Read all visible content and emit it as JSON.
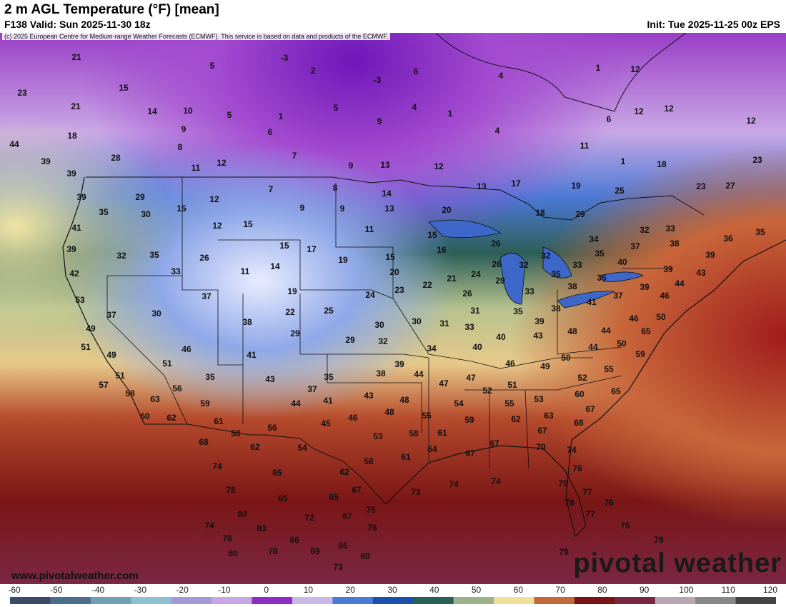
{
  "header": {
    "title": "2 m AGL Temperature (°F) [mean]",
    "valid": "F138 Valid: Sun 2025-11-30 18z",
    "init": "Init: Tue 2025-11-25 00z EPS"
  },
  "copyright": "(c) 2025 European Centre for Medium-range Weather Forecasts (ECMWF). This service is based on data and products of the ECMWF.",
  "website": "www.pivotalweather.com",
  "brand": "pivotal weather",
  "colorbar": {
    "ticks": [
      "-60",
      "-50",
      "-40",
      "-30",
      "-20",
      "-10",
      "0",
      "10",
      "20",
      "30",
      "40",
      "50",
      "60",
      "70",
      "80",
      "90",
      "100",
      "110",
      "120"
    ],
    "colors": [
      "#3a4a6a",
      "#4a6d8c",
      "#6fa0b4",
      "#8fc0d0",
      "#a29ad6",
      "#c8a6e4",
      "#8a2fc2",
      "#c9b8e6",
      "#4b7bd6",
      "#1b4fae",
      "#2c5f57",
      "#9bb28b",
      "#efe09a",
      "#c1693a",
      "#7a1414",
      "#7a2540",
      "#b8a6b0",
      "#888888",
      "#444444"
    ]
  },
  "temps": [
    [
      "21",
      107,
      81
    ],
    [
      "23",
      31,
      131
    ],
    [
      "21",
      106,
      150
    ],
    [
      "18",
      101,
      191
    ],
    [
      "44",
      20,
      203
    ],
    [
      "39",
      64,
      227
    ],
    [
      "28",
      162,
      222
    ],
    [
      "15",
      173,
      124
    ],
    [
      "14",
      213,
      157
    ],
    [
      "10",
      263,
      156
    ],
    [
      "9",
      257,
      182
    ],
    [
      "8",
      252,
      207
    ],
    [
      "11",
      274,
      236
    ],
    [
      "12",
      310,
      229
    ],
    [
      "5",
      297,
      93
    ],
    [
      "5",
      321,
      162
    ],
    [
      "1",
      393,
      164
    ],
    [
      "6",
      378,
      186
    ],
    [
      "7",
      412,
      219
    ],
    [
      "9",
      491,
      233
    ],
    [
      "13",
      539,
      232
    ],
    [
      "-3",
      398,
      82
    ],
    [
      "2",
      438,
      100
    ],
    [
      "-3",
      528,
      113
    ],
    [
      "6",
      582,
      101
    ],
    [
      "4",
      701,
      107
    ],
    [
      "5",
      470,
      152
    ],
    [
      "4",
      580,
      151
    ],
    [
      "1",
      630,
      160
    ],
    [
      "4",
      696,
      184
    ],
    [
      "9",
      531,
      171
    ],
    [
      "12",
      614,
      234
    ],
    [
      "11",
      818,
      205
    ],
    [
      "1",
      872,
      227
    ],
    [
      "18",
      926,
      231
    ],
    [
      "19",
      806,
      261
    ],
    [
      "25",
      867,
      268
    ],
    [
      "23",
      981,
      262
    ],
    [
      "27",
      1022,
      261
    ],
    [
      "23",
      1060,
      225
    ],
    [
      "12",
      894,
      157
    ],
    [
      "12",
      936,
      153
    ],
    [
      "12",
      1051,
      170
    ],
    [
      "6",
      852,
      168
    ],
    [
      "1",
      837,
      96
    ],
    [
      "12",
      889,
      98
    ],
    [
      "17",
      722,
      258
    ],
    [
      "13",
      674,
      262
    ],
    [
      "39",
      100,
      244
    ],
    [
      "39",
      114,
      277
    ],
    [
      "29",
      196,
      277
    ],
    [
      "35",
      145,
      298
    ],
    [
      "30",
      204,
      301
    ],
    [
      "41",
      107,
      320
    ],
    [
      "39",
      100,
      350
    ],
    [
      "42",
      104,
      384
    ],
    [
      "32",
      170,
      359
    ],
    [
      "35",
      216,
      358
    ],
    [
      "26",
      286,
      362
    ],
    [
      "33",
      246,
      381
    ],
    [
      "15",
      254,
      293
    ],
    [
      "12",
      300,
      280
    ],
    [
      "12",
      304,
      317
    ],
    [
      "15",
      347,
      315
    ],
    [
      "7",
      379,
      266
    ],
    [
      "8",
      469,
      264
    ],
    [
      "14",
      541,
      272
    ],
    [
      "9",
      423,
      292
    ],
    [
      "9",
      479,
      293
    ],
    [
      "13",
      545,
      293
    ],
    [
      "11",
      517,
      322
    ],
    [
      "20",
      625,
      295
    ],
    [
      "18",
      756,
      299
    ],
    [
      "29",
      812,
      301
    ],
    [
      "32",
      902,
      323
    ],
    [
      "33",
      938,
      321
    ],
    [
      "36",
      1019,
      335
    ],
    [
      "35",
      1064,
      326
    ],
    [
      "15",
      398,
      345
    ],
    [
      "17",
      436,
      350
    ],
    [
      "19",
      480,
      365
    ],
    [
      "15",
      546,
      361
    ],
    [
      "16",
      618,
      351
    ],
    [
      "15",
      605,
      330
    ],
    [
      "26",
      694,
      342
    ],
    [
      "26",
      695,
      371
    ],
    [
      "32",
      733,
      372
    ],
    [
      "32",
      764,
      359
    ],
    [
      "34",
      831,
      336
    ],
    [
      "37",
      889,
      346
    ],
    [
      "38",
      944,
      342
    ],
    [
      "39",
      994,
      358
    ],
    [
      "35",
      839,
      356
    ],
    [
      "40",
      871,
      368
    ],
    [
      "33",
      808,
      372
    ],
    [
      "35",
      778,
      385
    ],
    [
      "35",
      842,
      390
    ],
    [
      "39",
      935,
      378
    ],
    [
      "43",
      981,
      383
    ],
    [
      "44",
      951,
      398
    ],
    [
      "11",
      343,
      381
    ],
    [
      "14",
      385,
      374
    ],
    [
      "19",
      409,
      409
    ],
    [
      "20",
      552,
      382
    ],
    [
      "22",
      598,
      400
    ],
    [
      "21",
      632,
      391
    ],
    [
      "24",
      666,
      385
    ],
    [
      "29",
      700,
      394
    ],
    [
      "38",
      801,
      402
    ],
    [
      "37",
      865,
      415
    ],
    [
      "39",
      902,
      403
    ],
    [
      "46",
      930,
      415
    ],
    [
      "53",
      112,
      421
    ],
    [
      "37",
      289,
      416
    ],
    [
      "24",
      518,
      414
    ],
    [
      "23",
      559,
      407
    ],
    [
      "26",
      654,
      412
    ],
    [
      "33",
      741,
      409
    ],
    [
      "41",
      828,
      424
    ],
    [
      "50",
      925,
      445
    ],
    [
      "37",
      156,
      442
    ],
    [
      "30",
      219,
      440
    ],
    [
      "38",
      346,
      452
    ],
    [
      "22",
      406,
      438
    ],
    [
      "25",
      460,
      436
    ],
    [
      "31",
      665,
      436
    ],
    [
      "35",
      725,
      437
    ],
    [
      "39",
      755,
      451
    ],
    [
      "38",
      778,
      433
    ],
    [
      "46",
      887,
      447
    ],
    [
      "65",
      904,
      465
    ],
    [
      "49",
      127,
      461
    ],
    [
      "29",
      413,
      468
    ],
    [
      "30",
      531,
      456
    ],
    [
      "30",
      583,
      451
    ],
    [
      "31",
      622,
      454
    ],
    [
      "33",
      657,
      459
    ],
    [
      "40",
      701,
      473
    ],
    [
      "43",
      753,
      471
    ],
    [
      "48",
      801,
      465
    ],
    [
      "44",
      848,
      464
    ],
    [
      "51",
      120,
      487
    ],
    [
      "29",
      490,
      477
    ],
    [
      "32",
      536,
      479
    ],
    [
      "34",
      604,
      489
    ],
    [
      "40",
      668,
      487
    ],
    [
      "50",
      870,
      482
    ],
    [
      "44",
      830,
      487
    ],
    [
      "46",
      261,
      490
    ],
    [
      "49",
      156,
      498
    ],
    [
      "41",
      352,
      498
    ],
    [
      "51",
      234,
      510
    ],
    [
      "39",
      559,
      511
    ],
    [
      "46",
      714,
      510
    ],
    [
      "49",
      763,
      514
    ],
    [
      "50",
      792,
      502
    ],
    [
      "59",
      896,
      497
    ],
    [
      "35",
      294,
      529
    ],
    [
      "43",
      378,
      532
    ],
    [
      "35",
      460,
      529
    ],
    [
      "38",
      533,
      524
    ],
    [
      "44",
      586,
      525
    ],
    [
      "47",
      659,
      530
    ],
    [
      "52",
      815,
      530
    ],
    [
      "55",
      852,
      518
    ],
    [
      "51",
      168,
      527
    ],
    [
      "57",
      145,
      540
    ],
    [
      "56",
      248,
      545
    ],
    [
      "37",
      437,
      546
    ],
    [
      "47",
      621,
      538
    ],
    [
      "52",
      682,
      548
    ],
    [
      "51",
      717,
      540
    ],
    [
      "53",
      754,
      560
    ],
    [
      "60",
      811,
      553
    ],
    [
      "65",
      862,
      549
    ],
    [
      "58",
      182,
      552
    ],
    [
      "63",
      217,
      560
    ],
    [
      "59",
      287,
      566
    ],
    [
      "44",
      414,
      566
    ],
    [
      "41",
      459,
      562
    ],
    [
      "43",
      516,
      555
    ],
    [
      "48",
      566,
      561
    ],
    [
      "54",
      642,
      566
    ],
    [
      "55",
      713,
      566
    ],
    [
      "60",
      203,
      584
    ],
    [
      "62",
      240,
      586
    ],
    [
      "61",
      306,
      591
    ],
    [
      "46",
      494,
      586
    ],
    [
      "48",
      545,
      578
    ],
    [
      "55",
      597,
      583
    ],
    [
      "59",
      657,
      589
    ],
    [
      "62",
      722,
      588
    ],
    [
      "63",
      768,
      583
    ],
    [
      "67",
      826,
      574
    ],
    [
      "68",
      810,
      593
    ],
    [
      "58",
      330,
      608
    ],
    [
      "56",
      381,
      600
    ],
    [
      "45",
      456,
      594
    ],
    [
      "53",
      529,
      612
    ],
    [
      "58",
      579,
      608
    ],
    [
      "61",
      619,
      607
    ],
    [
      "67",
      759,
      604
    ],
    [
      "68",
      285,
      620
    ],
    [
      "62",
      357,
      627
    ],
    [
      "54",
      423,
      628
    ],
    [
      "64",
      605,
      630
    ],
    [
      "67",
      658,
      636
    ],
    [
      "67",
      692,
      622
    ],
    [
      "70",
      757,
      627
    ],
    [
      "74",
      800,
      631
    ],
    [
      "58",
      516,
      647
    ],
    [
      "61",
      568,
      641
    ],
    [
      "74",
      304,
      654
    ],
    [
      "65",
      388,
      663
    ],
    [
      "62",
      482,
      662
    ],
    [
      "67",
      499,
      687
    ],
    [
      "76",
      808,
      657
    ],
    [
      "78",
      323,
      687
    ],
    [
      "65",
      396,
      699
    ],
    [
      "65",
      467,
      697
    ],
    [
      "73",
      582,
      690
    ],
    [
      "74",
      635,
      679
    ],
    [
      "74",
      694,
      675
    ],
    [
      "79",
      788,
      678
    ],
    [
      "77",
      822,
      690
    ],
    [
      "80",
      339,
      721
    ],
    [
      "72",
      433,
      726
    ],
    [
      "67",
      486,
      724
    ],
    [
      "75",
      519,
      715
    ],
    [
      "78",
      797,
      705
    ],
    [
      "77",
      826,
      721
    ],
    [
      "76",
      852,
      705
    ],
    [
      "74",
      293,
      737
    ],
    [
      "83",
      366,
      741
    ],
    [
      "76",
      521,
      740
    ],
    [
      "75",
      875,
      737
    ],
    [
      "78",
      318,
      755
    ],
    [
      "66",
      412,
      757
    ],
    [
      "66",
      480,
      765
    ],
    [
      "78",
      922,
      757
    ],
    [
      "80",
      326,
      776
    ],
    [
      "78",
      382,
      773
    ],
    [
      "69",
      441,
      773
    ],
    [
      "80",
      511,
      780
    ],
    [
      "79",
      789,
      774
    ],
    [
      "73",
      473,
      795
    ]
  ]
}
